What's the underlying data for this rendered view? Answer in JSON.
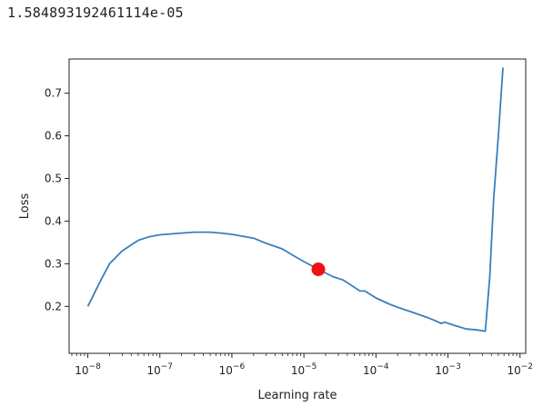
{
  "output": {
    "printed_value": "1.584893192461114e-05"
  },
  "chart_data": {
    "type": "line",
    "title": "",
    "xlabel": "Learning rate",
    "ylabel": "Loss",
    "x_scale": "log",
    "xlim": [
      5.5e-09,
      0.012
    ],
    "ylim": [
      0.09,
      0.78
    ],
    "x_ticks": [
      {
        "value": 1e-08,
        "base": "10",
        "exp": "−8"
      },
      {
        "value": 1e-07,
        "base": "10",
        "exp": "−7"
      },
      {
        "value": 1e-06,
        "base": "10",
        "exp": "−6"
      },
      {
        "value": 1e-05,
        "base": "10",
        "exp": "−5"
      },
      {
        "value": 0.0001,
        "base": "10",
        "exp": "−4"
      },
      {
        "value": 0.001,
        "base": "10",
        "exp": "−3"
      },
      {
        "value": 0.01,
        "base": "10",
        "exp": "−2"
      }
    ],
    "y_ticks": [
      {
        "value": 0.2,
        "label": "0.2"
      },
      {
        "value": 0.3,
        "label": "0.3"
      },
      {
        "value": 0.4,
        "label": "0.4"
      },
      {
        "value": 0.5,
        "label": "0.5"
      },
      {
        "value": 0.6,
        "label": "0.6"
      },
      {
        "value": 0.7,
        "label": "0.7"
      }
    ],
    "grid": false,
    "series": [
      {
        "color": "#3a7ebf",
        "x": [
          1e-08,
          1.5e-08,
          2e-08,
          3e-08,
          5e-08,
          7e-08,
          1e-07,
          2e-07,
          3e-07,
          5e-07,
          7e-07,
          1e-06,
          2e-06,
          3e-06,
          5e-06,
          7e-06,
          1e-05,
          1.584893192461114e-05,
          2.5e-05,
          3.5e-05,
          5e-05,
          6e-05,
          7e-05,
          0.0001,
          0.00015,
          0.0002,
          0.0003,
          0.0005,
          0.0007,
          0.0008,
          0.0009,
          0.0012,
          0.0018,
          0.0025,
          0.0033,
          0.0038,
          0.0043,
          0.005,
          0.0058
        ],
        "y": [
          0.2,
          0.26,
          0.3,
          0.33,
          0.355,
          0.363,
          0.368,
          0.372,
          0.374,
          0.374,
          0.372,
          0.369,
          0.36,
          0.348,
          0.335,
          0.32,
          0.305,
          0.287,
          0.27,
          0.262,
          0.245,
          0.236,
          0.236,
          0.22,
          0.206,
          0.198,
          0.188,
          0.175,
          0.165,
          0.16,
          0.163,
          0.156,
          0.147,
          0.145,
          0.142,
          0.27,
          0.45,
          0.6,
          0.76
        ]
      }
    ],
    "marker": {
      "x": 1.584893192461114e-05,
      "y": 0.287,
      "color": "#ee1111"
    }
  }
}
